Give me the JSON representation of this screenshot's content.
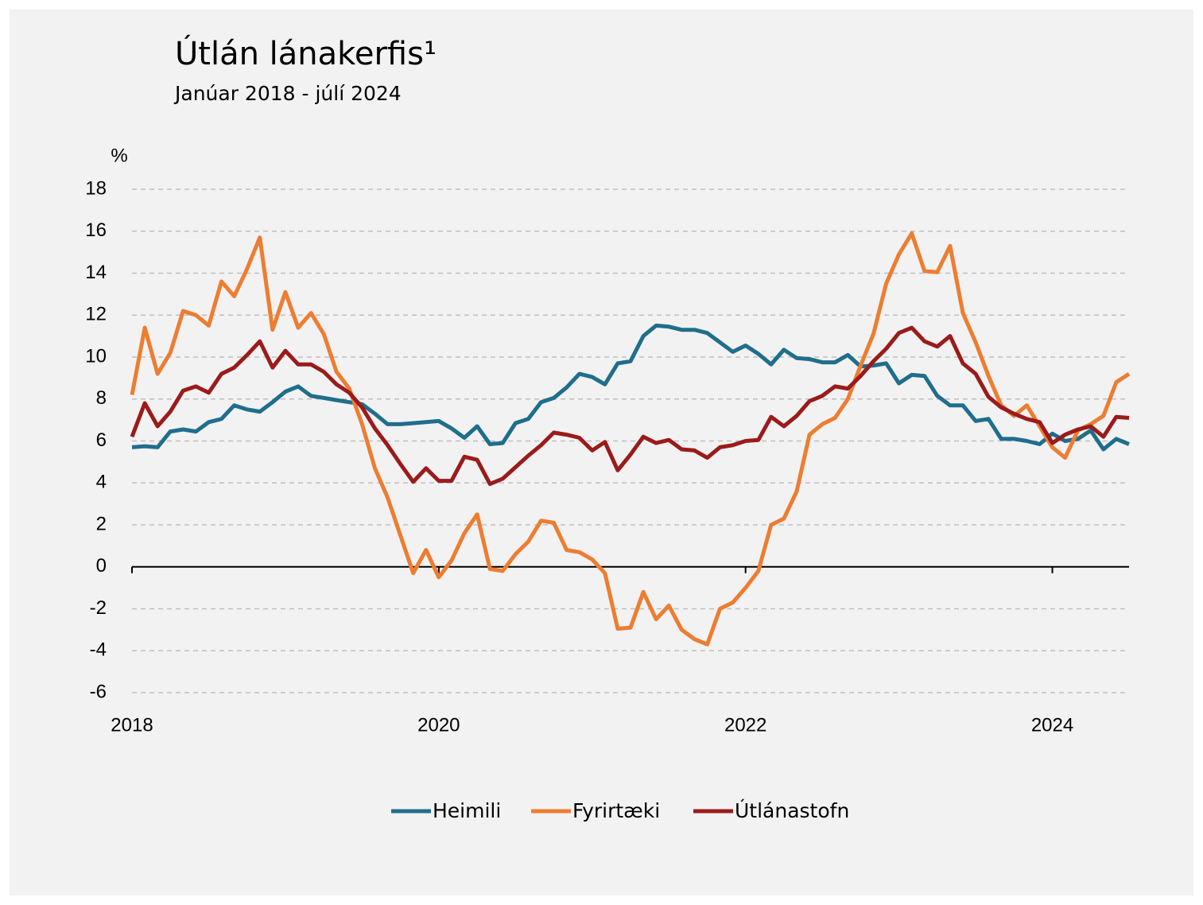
{
  "chart_data": {
    "type": "line",
    "title": "Útlán lánakerfis¹",
    "subtitle": "Janúar 2018 - júlí 2024",
    "y_unit": "%",
    "categories": [
      "2018",
      null,
      null,
      null,
      null,
      null,
      null,
      null,
      null,
      null,
      null,
      null,
      null,
      null,
      null,
      null,
      null,
      null,
      null,
      null,
      null,
      null,
      null,
      null,
      "2020",
      null,
      null,
      null,
      null,
      null,
      null,
      null,
      null,
      null,
      null,
      null,
      null,
      null,
      null,
      null,
      null,
      null,
      null,
      null,
      null,
      null,
      null,
      null,
      "2022",
      null,
      null,
      null,
      null,
      null,
      null,
      null,
      null,
      null,
      null,
      null,
      null,
      null,
      null,
      null,
      null,
      null,
      null,
      null,
      null,
      null,
      null,
      null,
      "2024",
      null,
      null,
      null,
      null,
      null,
      null
    ],
    "ylim": [
      -6,
      18
    ],
    "yticks": [
      -6,
      -4,
      -2,
      0,
      2,
      4,
      6,
      8,
      10,
      12,
      14,
      16,
      18
    ],
    "grid": true,
    "legend": "bottom",
    "series": [
      {
        "name": "Heimili",
        "color": "#1f6e8c",
        "values": [
          5.7,
          5.75,
          5.7,
          6.45,
          6.55,
          6.45,
          6.9,
          7.05,
          7.7,
          7.5,
          7.4,
          7.85,
          8.35,
          8.6,
          8.15,
          8.05,
          7.95,
          7.85,
          7.75,
          7.3,
          6.8,
          6.8,
          6.85,
          6.9,
          6.95,
          6.6,
          6.15,
          6.7,
          5.85,
          5.9,
          6.85,
          7.05,
          7.85,
          8.05,
          8.55,
          9.2,
          9.05,
          8.7,
          9.7,
          9.8,
          11.0,
          11.5,
          11.45,
          11.3,
          11.3,
          11.15,
          10.7,
          10.25,
          10.55,
          10.15,
          9.65,
          10.35,
          9.95,
          9.9,
          9.75,
          9.75,
          10.1,
          9.55,
          9.6,
          9.7,
          8.75,
          9.15,
          9.1,
          8.15,
          7.7,
          7.7,
          6.95,
          7.05,
          6.1,
          6.1,
          6.0,
          5.85,
          6.35,
          6.0,
          6.1,
          6.5,
          5.6,
          6.1,
          5.85
        ]
      },
      {
        "name": "Fyrirtæki",
        "color": "#ed7d31",
        "values": [
          8.2,
          11.4,
          9.2,
          10.2,
          12.2,
          12.0,
          11.5,
          13.6,
          12.9,
          14.2,
          15.7,
          11.3,
          13.1,
          11.4,
          12.1,
          11.1,
          9.3,
          8.5,
          6.8,
          4.7,
          3.3,
          1.5,
          -0.3,
          0.8,
          -0.5,
          0.3,
          1.6,
          2.5,
          -0.1,
          -0.2,
          0.6,
          1.2,
          2.2,
          2.1,
          0.8,
          0.7,
          0.35,
          -0.3,
          -2.95,
          -2.9,
          -1.2,
          -2.5,
          -1.85,
          -3.0,
          -3.45,
          -3.7,
          -2.0,
          -1.7,
          -1.0,
          -0.2,
          2.0,
          2.3,
          3.6,
          6.3,
          6.8,
          7.1,
          8.0,
          9.6,
          11.1,
          13.5,
          14.9,
          15.9,
          14.1,
          14.05,
          15.3,
          12.1,
          10.7,
          9.1,
          7.7,
          7.2,
          7.7,
          6.7,
          5.7,
          5.2,
          6.5,
          6.8,
          7.2,
          8.8,
          9.2
        ]
      },
      {
        "name": "Útlánastofn",
        "color": "#9b1b1b",
        "values": [
          6.2,
          7.8,
          6.7,
          7.4,
          8.4,
          8.6,
          8.3,
          9.2,
          9.5,
          10.1,
          10.75,
          9.5,
          10.3,
          9.65,
          9.65,
          9.3,
          8.7,
          8.3,
          7.6,
          6.6,
          5.8,
          4.9,
          4.05,
          4.7,
          4.1,
          4.1,
          5.25,
          5.1,
          3.95,
          4.2,
          4.75,
          5.3,
          5.8,
          6.4,
          6.3,
          6.15,
          5.55,
          5.95,
          4.6,
          5.35,
          6.2,
          5.9,
          6.05,
          5.6,
          5.55,
          5.2,
          5.7,
          5.8,
          6.0,
          6.05,
          7.15,
          6.7,
          7.2,
          7.9,
          8.15,
          8.6,
          8.5,
          9.1,
          9.8,
          10.4,
          11.15,
          11.4,
          10.75,
          10.5,
          11.0,
          9.7,
          9.2,
          8.1,
          7.6,
          7.3,
          7.05,
          6.9,
          5.9,
          6.3,
          6.55,
          6.7,
          6.2,
          7.15,
          7.1
        ]
      }
    ]
  }
}
